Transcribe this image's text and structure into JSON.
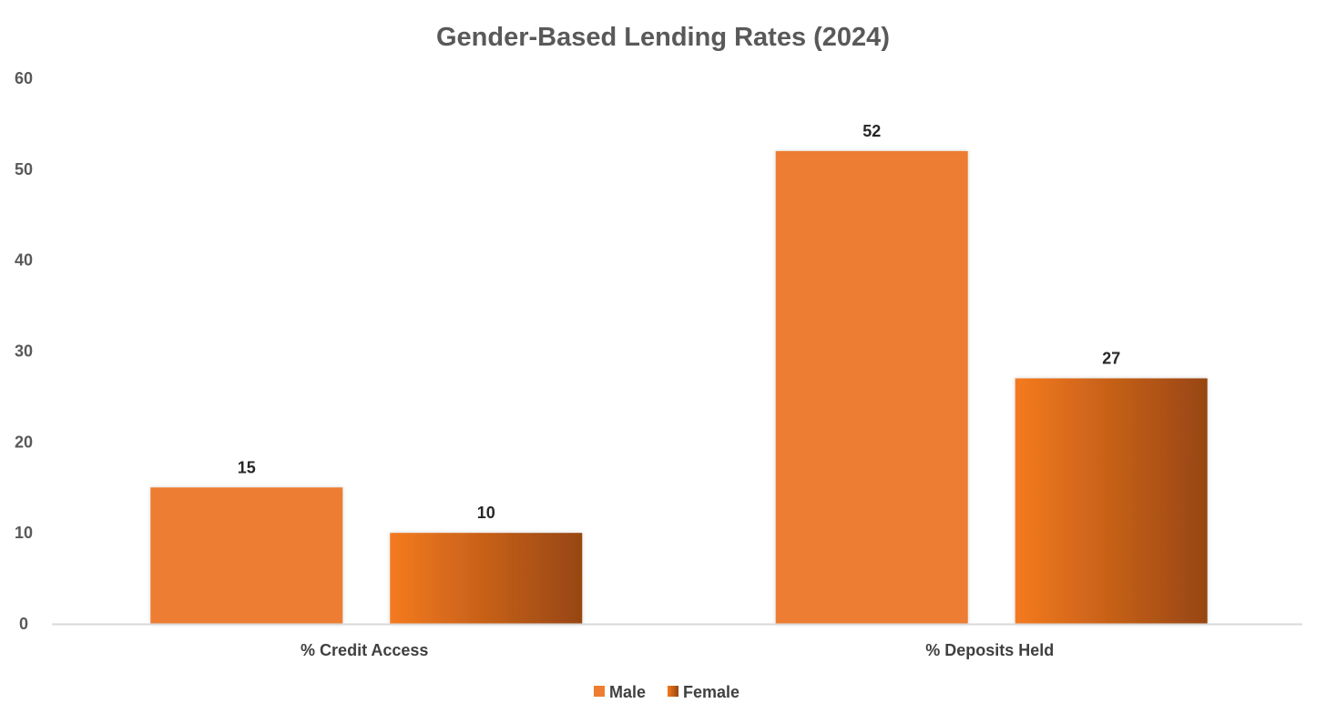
{
  "chart_data": {
    "type": "bar",
    "title": "Gender-Based Lending Rates (2024)",
    "xlabel": "",
    "ylabel": "",
    "categories": [
      "% Credit Access",
      "% Deposits Held"
    ],
    "series": [
      {
        "name": "Male",
        "values": [
          15,
          52
        ],
        "color": "#ED7D31"
      },
      {
        "name": "Female",
        "values": [
          10,
          27
        ],
        "color_gradient": [
          "#F47A20",
          "#974611"
        ]
      }
    ],
    "ylim": [
      0,
      60
    ],
    "yticks": [
      0,
      10,
      20,
      30,
      40,
      50,
      60
    ],
    "grid": false,
    "legend": "bottom",
    "data_labels": true
  }
}
